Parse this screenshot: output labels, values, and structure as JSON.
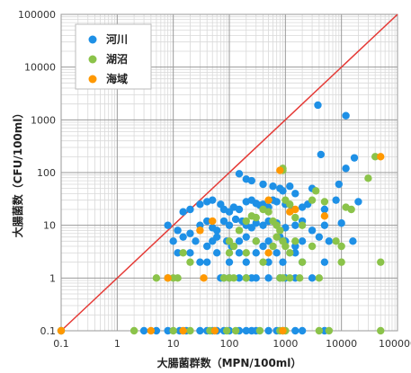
{
  "chart_data": {
    "type": "scatter",
    "xlabel": "大腸菌群数（MPN/100ml）",
    "ylabel": "大腸菌数（CFU/100ml）",
    "xscale": "log",
    "yscale": "log",
    "xlim": [
      0.1,
      100000
    ],
    "ylim": [
      0.1,
      100000
    ],
    "xticks": [
      "0.1",
      "1",
      "10",
      "100",
      "1000",
      "10000",
      "100000"
    ],
    "yticks": [
      "0.1",
      "1",
      "10",
      "100",
      "1000",
      "10000",
      "100000"
    ],
    "grid": true,
    "legend_position": "top-left",
    "reference_line": {
      "type": "y=x",
      "color": "#e53935"
    },
    "series": [
      {
        "name": "河川",
        "color": "#1e90e6",
        "points": [
          [
            0.1,
            0.1
          ],
          [
            3,
            0.1
          ],
          [
            5,
            0.1
          ],
          [
            8,
            0.1
          ],
          [
            13,
            0.1
          ],
          [
            17,
            0.1
          ],
          [
            30,
            0.1
          ],
          [
            40,
            0.1
          ],
          [
            50,
            0.1
          ],
          [
            60,
            0.1
          ],
          [
            80,
            0.1
          ],
          [
            100,
            0.1
          ],
          [
            150,
            0.1
          ],
          [
            200,
            0.1
          ],
          [
            250,
            0.1
          ],
          [
            300,
            0.1
          ],
          [
            500,
            0.1
          ],
          [
            700,
            0.1
          ],
          [
            900,
            0.1
          ],
          [
            1500,
            0.1
          ],
          [
            2000,
            0.1
          ],
          [
            5000,
            0.1
          ],
          [
            3800,
            1900
          ],
          [
            12000,
            1200
          ],
          [
            17000,
            190
          ],
          [
            12000,
            120
          ],
          [
            4300,
            220
          ],
          [
            150,
            95
          ],
          [
            200,
            75
          ],
          [
            250,
            70
          ],
          [
            400,
            60
          ],
          [
            600,
            55
          ],
          [
            800,
            50
          ],
          [
            900,
            45
          ],
          [
            1200,
            55
          ],
          [
            1500,
            40
          ],
          [
            3000,
            50
          ],
          [
            9000,
            60
          ],
          [
            15,
            18
          ],
          [
            20,
            20
          ],
          [
            30,
            25
          ],
          [
            40,
            28
          ],
          [
            50,
            30
          ],
          [
            70,
            25
          ],
          [
            80,
            20
          ],
          [
            100,
            18
          ],
          [
            120,
            22
          ],
          [
            150,
            20
          ],
          [
            200,
            28
          ],
          [
            250,
            30
          ],
          [
            300,
            26
          ],
          [
            350,
            24
          ],
          [
            400,
            25
          ],
          [
            500,
            22
          ],
          [
            600,
            30
          ],
          [
            700,
            28
          ],
          [
            1000,
            25
          ],
          [
            1300,
            20
          ],
          [
            2000,
            22
          ],
          [
            2500,
            25
          ],
          [
            5000,
            20
          ],
          [
            8000,
            30
          ],
          [
            20000,
            28
          ],
          [
            8,
            10
          ],
          [
            12,
            8
          ],
          [
            20,
            7
          ],
          [
            30,
            10
          ],
          [
            40,
            12
          ],
          [
            50,
            9
          ],
          [
            60,
            8
          ],
          [
            80,
            12
          ],
          [
            100,
            10
          ],
          [
            130,
            13
          ],
          [
            170,
            12
          ],
          [
            200,
            10
          ],
          [
            250,
            9
          ],
          [
            300,
            11
          ],
          [
            400,
            10
          ],
          [
            500,
            12
          ],
          [
            700,
            11
          ],
          [
            1000,
            9
          ],
          [
            1500,
            10
          ],
          [
            2000,
            12
          ],
          [
            3000,
            8
          ],
          [
            5000,
            10
          ],
          [
            10000,
            11
          ],
          [
            10,
            5
          ],
          [
            15,
            6
          ],
          [
            25,
            5
          ],
          [
            40,
            4
          ],
          [
            50,
            5
          ],
          [
            60,
            6
          ],
          [
            90,
            5
          ],
          [
            110,
            4
          ],
          [
            150,
            5
          ],
          [
            200,
            6
          ],
          [
            300,
            5
          ],
          [
            400,
            4
          ],
          [
            500,
            5
          ],
          [
            800,
            6
          ],
          [
            1000,
            5
          ],
          [
            1500,
            4
          ],
          [
            2000,
            5
          ],
          [
            4000,
            6
          ],
          [
            6000,
            5
          ],
          [
            16000,
            5
          ],
          [
            12,
            3
          ],
          [
            20,
            3
          ],
          [
            40,
            2
          ],
          [
            60,
            3
          ],
          [
            100,
            2
          ],
          [
            150,
            3
          ],
          [
            200,
            2
          ],
          [
            300,
            3
          ],
          [
            500,
            2
          ],
          [
            700,
            3
          ],
          [
            900,
            2
          ],
          [
            1500,
            3
          ],
          [
            2000,
            2
          ],
          [
            5000,
            2
          ],
          [
            30,
            2
          ],
          [
            70,
            1
          ],
          [
            80,
            1
          ],
          [
            100,
            1
          ],
          [
            150,
            1
          ],
          [
            200,
            1
          ],
          [
            250,
            1
          ],
          [
            300,
            1
          ],
          [
            500,
            1
          ],
          [
            800,
            1
          ],
          [
            1000,
            1
          ],
          [
            1500,
            1
          ],
          [
            3000,
            1
          ]
        ]
      },
      {
        "name": "湖沼",
        "color": "#8bc34a",
        "points": [
          [
            0.1,
            0.1
          ],
          [
            2,
            0.1
          ],
          [
            10,
            0.1
          ],
          [
            20,
            0.1
          ],
          [
            45,
            0.1
          ],
          [
            90,
            0.1
          ],
          [
            130,
            0.1
          ],
          [
            350,
            0.1
          ],
          [
            800,
            0.1
          ],
          [
            1000,
            0.1
          ],
          [
            4000,
            0.1
          ],
          [
            6000,
            0.1
          ],
          [
            50000,
            0.1
          ],
          [
            900,
            120
          ],
          [
            900,
            110
          ],
          [
            3500,
            45
          ],
          [
            30000,
            78
          ],
          [
            40000,
            200
          ],
          [
            50000,
            2
          ],
          [
            5,
            1
          ],
          [
            8,
            1
          ],
          [
            10,
            1
          ],
          [
            12,
            1
          ],
          [
            15,
            3
          ],
          [
            20,
            2
          ],
          [
            80,
            1
          ],
          [
            100,
            1
          ],
          [
            120,
            1
          ],
          [
            200,
            1
          ],
          [
            800,
            1
          ],
          [
            900,
            1
          ],
          [
            1200,
            1
          ],
          [
            1800,
            1
          ],
          [
            4000,
            1
          ],
          [
            100,
            5
          ],
          [
            150,
            8
          ],
          [
            200,
            12
          ],
          [
            250,
            15
          ],
          [
            300,
            14
          ],
          [
            400,
            20
          ],
          [
            500,
            18
          ],
          [
            600,
            12
          ],
          [
            700,
            10
          ],
          [
            800,
            8
          ],
          [
            1000,
            30
          ],
          [
            1200,
            25
          ],
          [
            1500,
            14
          ],
          [
            2000,
            10
          ],
          [
            3000,
            30
          ],
          [
            5000,
            28
          ],
          [
            12000,
            22
          ],
          [
            15000,
            20
          ],
          [
            100,
            3
          ],
          [
            120,
            4
          ],
          [
            200,
            3
          ],
          [
            300,
            5
          ],
          [
            400,
            2
          ],
          [
            600,
            4
          ],
          [
            700,
            6
          ],
          [
            900,
            5
          ],
          [
            1000,
            4
          ],
          [
            1200,
            3
          ],
          [
            1500,
            5
          ],
          [
            2000,
            2
          ],
          [
            3000,
            4
          ],
          [
            8000,
            5
          ],
          [
            10000,
            4
          ],
          [
            10000,
            2
          ]
        ]
      },
      {
        "name": "海域",
        "color": "#ff9800",
        "points": [
          [
            0.1,
            0.1
          ],
          [
            4,
            0.1
          ],
          [
            15,
            0.1
          ],
          [
            55,
            0.1
          ],
          [
            900,
            0.1
          ],
          [
            8,
            1
          ],
          [
            35,
            1
          ],
          [
            800,
            110
          ],
          [
            1500,
            20
          ],
          [
            1200,
            18
          ],
          [
            50,
            12
          ],
          [
            30,
            8
          ],
          [
            500,
            30
          ],
          [
            50000,
            200
          ],
          [
            500,
            3
          ],
          [
            5000,
            15
          ]
        ]
      }
    ]
  }
}
